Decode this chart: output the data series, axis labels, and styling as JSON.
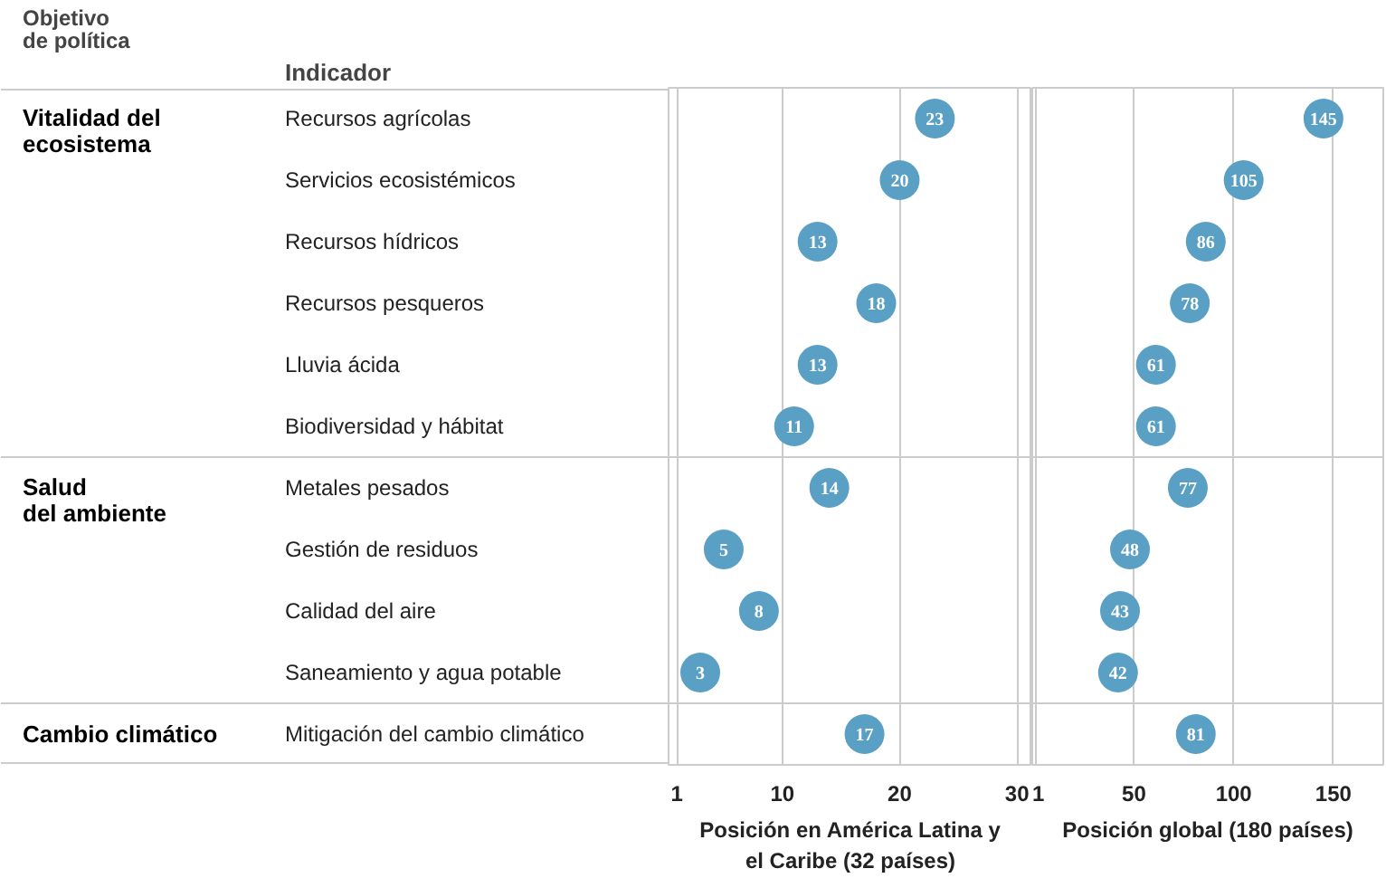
{
  "chart_data": [
    {
      "type": "scatter",
      "orientation": "horizontal",
      "ylabel": "Indicador",
      "xlabel": "Posición en América Latina y\nel Caribe (32 países)",
      "categories": [
        "Recursos agrícolas",
        "Servicios ecosistémicos",
        "Recursos hídricos",
        "Recursos pesqueros",
        "Lluvia ácida",
        "Biodiversidad y hábitat",
        "Metales pesados",
        "Gestión de residuos",
        "Calidad del aire",
        "Saneamiento y agua potable",
        "Mitigación del cambio climático"
      ],
      "values": [
        23,
        20,
        13,
        18,
        13,
        11,
        14,
        5,
        8,
        3,
        17
      ],
      "color": "#5a9fc4",
      "data_labels": true,
      "xlim": [
        0.3,
        31.3
      ],
      "xticks": [
        1,
        10,
        20,
        30
      ],
      "grid": "x",
      "annotations": [
        "Objetivo\nde política",
        "Vitalidad del\necosistema",
        "Salud\ndel ambiente",
        "Cambio climático"
      ]
    },
    {
      "type": "scatter",
      "orientation": "horizontal",
      "xlabel": "Posición global (180 países)",
      "tick_labels": "x",
      "categories": [
        null,
        null,
        null,
        null,
        null,
        null,
        null,
        null,
        null,
        null,
        null
      ],
      "values": [
        145,
        105,
        86,
        78,
        61,
        61,
        77,
        48,
        43,
        42,
        81
      ],
      "color": "#5a9fc4",
      "data_labels": true,
      "xlim": [
        -1,
        175
      ],
      "xticks": [
        1,
        50,
        100,
        150
      ],
      "grid": "x"
    }
  ]
}
